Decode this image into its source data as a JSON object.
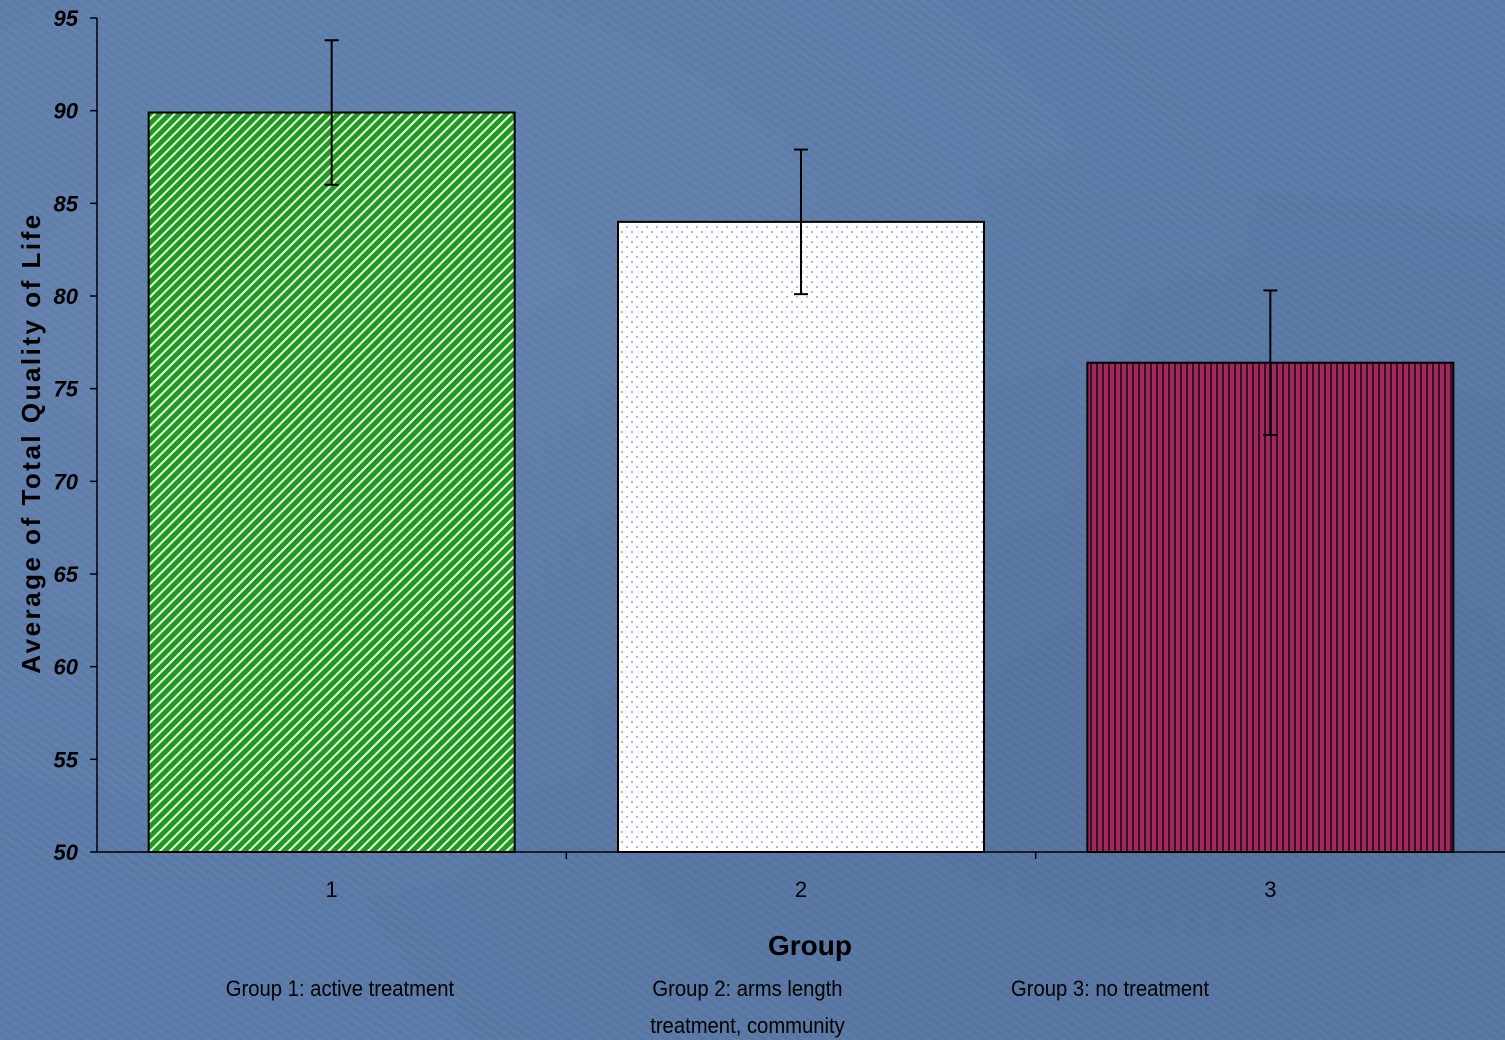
{
  "chart_data": {
    "type": "bar",
    "categories": [
      "1",
      "2",
      "3"
    ],
    "values": [
      89.9,
      84.0,
      76.4
    ],
    "error_upper": [
      93.8,
      87.9,
      80.3
    ],
    "error_lower": [
      86.0,
      80.1,
      72.5
    ],
    "xlabel": "Group",
    "ylabel": "Average of Total Quality of Life",
    "ylim": [
      50,
      95
    ],
    "yticks": [
      50,
      55,
      60,
      65,
      70,
      75,
      80,
      85,
      90,
      95
    ],
    "grid": false,
    "bar_styles": [
      {
        "fill": "#1f9a1f",
        "pattern": "diagonal-stripes",
        "pattern_color": "#e8f5e8"
      },
      {
        "fill": "#ffffff",
        "pattern": "dots",
        "pattern_color": "#8aa2e6"
      },
      {
        "fill": "#a0285a",
        "pattern": "vertical-stripes",
        "pattern_color": "#3a1028"
      }
    ]
  },
  "notes": [
    "Group 1: active treatment",
    "Group 2: arms length treatment, community",
    "Group 3: no treatment"
  ]
}
